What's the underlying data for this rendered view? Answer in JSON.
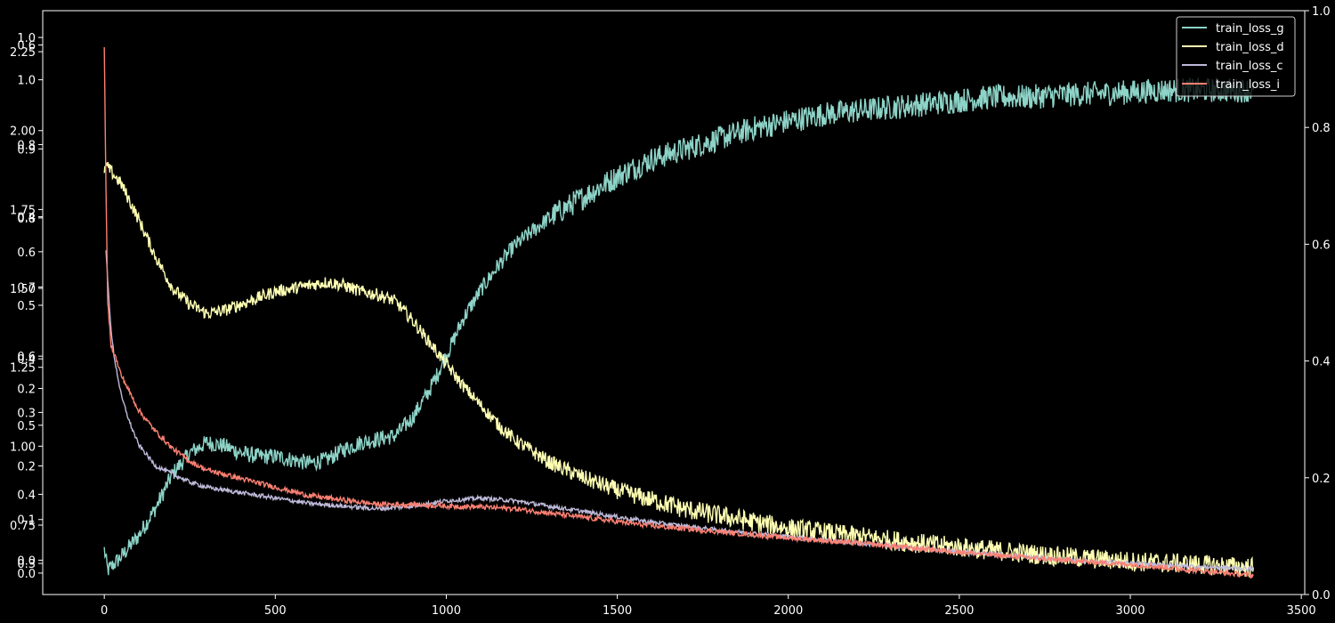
{
  "chart_data": {
    "type": "line",
    "xlabel": "",
    "ylabel": "",
    "xlim": [
      -180,
      3510
    ],
    "x_ticks": [
      0,
      500,
      1000,
      1500,
      2000,
      2500,
      3000,
      3500
    ],
    "x_tick_labels": [
      "0",
      "500",
      "1000",
      "1500",
      "2000",
      "2500",
      "3000",
      "3500"
    ],
    "legend_position": "top-right",
    "background": "#000000",
    "axis_color": "#ffffff",
    "left_tick_label_groups": [
      {
        "axis": "train_loss_g",
        "ylim": [
          0.255,
          1.1
        ],
        "ticks": [
          0.3,
          0.4,
          0.5,
          0.6,
          0.7,
          0.8,
          0.9,
          1.0
        ],
        "labels": [
          "0.3",
          "0.4",
          "0.5",
          "0.6",
          "0.7",
          "0.8",
          "0.9",
          "1.0"
        ]
      },
      {
        "axis": "train_loss_d",
        "ylim": [
          0.53,
          2.38
        ],
        "ticks": [
          0.75,
          1.0,
          1.25,
          1.5,
          1.75,
          2.0,
          2.25
        ],
        "labels": [
          "0.75",
          "1.00",
          "1.25",
          "1.50",
          "1.75",
          "2.00",
          "2.25"
        ]
      },
      {
        "axis": "train_loss_c",
        "ylim": [
          -0.04,
          1.05
        ],
        "ticks": [
          0.0,
          0.1,
          0.2,
          0.3,
          0.4,
          0.5,
          0.6,
          0.8,
          1.0
        ],
        "labels": [
          "0.0",
          "0.1",
          "0.2",
          "0.3",
          "0.4",
          "0.5",
          "0.6",
          "0.8",
          "1.0"
        ]
      },
      {
        "axis": "train_loss_i",
        "ylim": [
          -0.04,
          0.64
        ],
        "ticks": [
          0.0,
          0.2,
          0.4,
          0.6
        ],
        "labels": [
          "0.0",
          "0.2",
          "0.4",
          "0.6"
        ]
      }
    ],
    "right_axis": {
      "ylim": [
        0.0,
        1.0
      ],
      "ticks": [
        0.0,
        0.2,
        0.4,
        0.6,
        0.8,
        1.0
      ],
      "labels": [
        "0.0",
        "0.2",
        "0.4",
        "0.6",
        "0.8",
        "1.0"
      ]
    },
    "series": [
      {
        "name": "train_loss_g",
        "color": "#8dd3c7",
        "axis": "train_loss_g",
        "x": [
          0,
          10,
          50,
          100,
          150,
          200,
          250,
          300,
          350,
          400,
          450,
          500,
          550,
          600,
          650,
          700,
          750,
          800,
          850,
          900,
          950,
          1000,
          1050,
          1100,
          1150,
          1200,
          1300,
          1400,
          1500,
          1600,
          1700,
          1800,
          1900,
          2000,
          2100,
          2200,
          2300,
          2400,
          2500,
          2600,
          2700,
          2800,
          2900,
          3000,
          3100,
          3200,
          3300,
          3360
        ],
        "y": [
          0.32,
          0.29,
          0.31,
          0.34,
          0.38,
          0.43,
          0.46,
          0.475,
          0.47,
          0.46,
          0.455,
          0.455,
          0.45,
          0.445,
          0.45,
          0.465,
          0.475,
          0.48,
          0.485,
          0.51,
          0.55,
          0.6,
          0.655,
          0.695,
          0.73,
          0.76,
          0.8,
          0.83,
          0.86,
          0.885,
          0.9,
          0.915,
          0.93,
          0.94,
          0.95,
          0.955,
          0.96,
          0.965,
          0.97,
          0.975,
          0.975,
          0.978,
          0.98,
          0.982,
          0.985,
          0.985,
          0.985,
          0.985
        ]
      },
      {
        "name": "train_loss_d",
        "color": "#ffffb3",
        "axis": "train_loss_d",
        "x": [
          0,
          5,
          20,
          50,
          100,
          150,
          200,
          250,
          300,
          350,
          400,
          450,
          500,
          550,
          600,
          650,
          700,
          750,
          800,
          850,
          900,
          950,
          1000,
          1050,
          1100,
          1150,
          1200,
          1300,
          1400,
          1500,
          1600,
          1700,
          1800,
          1900,
          2000,
          2200,
          2400,
          2600,
          2800,
          3000,
          3200,
          3360
        ],
        "y": [
          1.86,
          1.89,
          1.87,
          1.83,
          1.72,
          1.6,
          1.5,
          1.45,
          1.42,
          1.43,
          1.45,
          1.47,
          1.49,
          1.5,
          1.51,
          1.52,
          1.51,
          1.49,
          1.48,
          1.46,
          1.4,
          1.33,
          1.26,
          1.19,
          1.13,
          1.07,
          1.02,
          0.95,
          0.9,
          0.86,
          0.83,
          0.8,
          0.78,
          0.76,
          0.74,
          0.715,
          0.69,
          0.67,
          0.65,
          0.635,
          0.625,
          0.615
        ]
      },
      {
        "name": "train_loss_c",
        "color": "#bebada",
        "axis": "train_loss_c",
        "x": [
          5,
          10,
          20,
          30,
          50,
          75,
          100,
          150,
          200,
          250,
          300,
          350,
          400,
          500,
          600,
          700,
          800,
          900,
          1000,
          1100,
          1200,
          1300,
          1400,
          1500,
          1600,
          1800,
          2000,
          2200,
          2400,
          2600,
          2800,
          3000,
          3200,
          3360
        ],
        "y": [
          0.6,
          0.55,
          0.45,
          0.4,
          0.33,
          0.28,
          0.24,
          0.2,
          0.185,
          0.17,
          0.16,
          0.155,
          0.15,
          0.14,
          0.13,
          0.125,
          0.12,
          0.125,
          0.135,
          0.14,
          0.135,
          0.125,
          0.115,
          0.105,
          0.095,
          0.08,
          0.068,
          0.056,
          0.045,
          0.035,
          0.025,
          0.018,
          0.012,
          0.008
        ]
      },
      {
        "name": "train_loss_i",
        "color": "#fb8072",
        "axis": "train_loss_i",
        "x": [
          0,
          5,
          10,
          20,
          30,
          50,
          75,
          100,
          150,
          200,
          250,
          300,
          350,
          400,
          500,
          600,
          700,
          800,
          900,
          1000,
          1100,
          1200,
          1300,
          1400,
          1500,
          1600,
          1800,
          2000,
          2200,
          2400,
          2600,
          2800,
          3000,
          3200,
          3360
        ],
        "y": [
          0.6,
          0.43,
          0.3,
          0.25,
          0.24,
          0.215,
          0.195,
          0.175,
          0.15,
          0.13,
          0.115,
          0.105,
          0.1,
          0.095,
          0.085,
          0.075,
          0.07,
          0.065,
          0.065,
          0.063,
          0.062,
          0.06,
          0.055,
          0.05,
          0.045,
          0.04,
          0.033,
          0.026,
          0.02,
          0.013,
          0.006,
          0.0,
          -0.005,
          -0.012,
          -0.018
        ]
      }
    ]
  }
}
